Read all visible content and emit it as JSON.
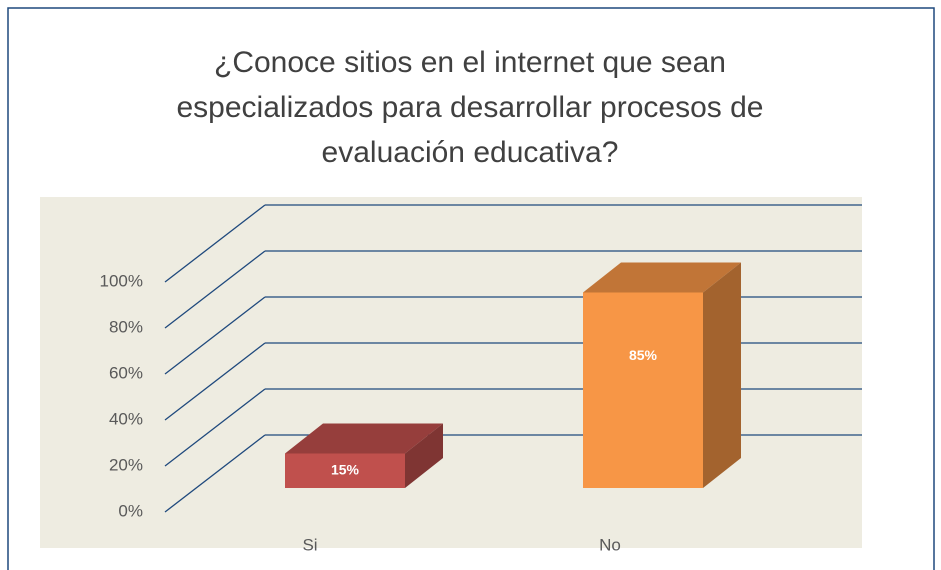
{
  "chart_data": {
    "type": "bar3d",
    "title": "¿Conoce sitios en el internet que sean especializados para desarrollar procesos de evaluación educativa?",
    "categories": [
      "Si",
      "No"
    ],
    "values": [
      15,
      85
    ],
    "value_labels": [
      "15%",
      "85%"
    ],
    "colors": [
      "#c0504d",
      "#f79646"
    ],
    "ylim": [
      0,
      100
    ],
    "yticks": [
      {
        "value": 0,
        "label": "0%"
      },
      {
        "value": 20,
        "label": "20%"
      },
      {
        "value": 40,
        "label": "40%"
      },
      {
        "value": 60,
        "label": "60%"
      },
      {
        "value": 80,
        "label": "80%"
      },
      {
        "value": 100,
        "label": "100%"
      }
    ],
    "grid": true
  }
}
